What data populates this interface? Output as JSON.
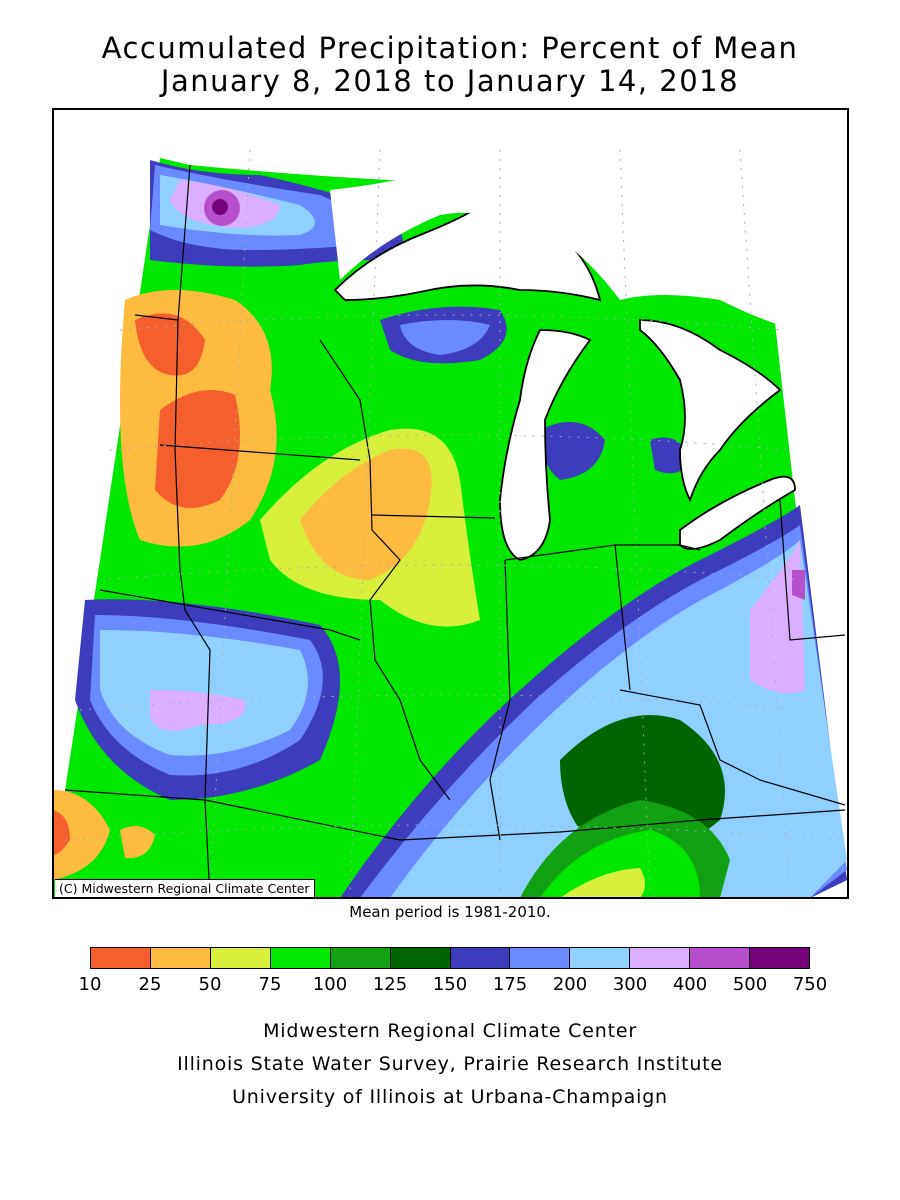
{
  "title": {
    "line1": "Accumulated Precipitation: Percent of Mean",
    "line2": "January 8, 2018 to January 14, 2018"
  },
  "map": {
    "copyright": "(C) Midwestern Regional Climate Center",
    "mean_period": "Mean period is 1981-2010."
  },
  "legend": {
    "breaks": [
      "10",
      "25",
      "50",
      "75",
      "100",
      "125",
      "150",
      "175",
      "200",
      "300",
      "400",
      "500",
      "750"
    ],
    "colors": [
      "#f55f2d",
      "#fdbb3f",
      "#d8f03b",
      "#00e800",
      "#12a112",
      "#006400",
      "#3c3cbd",
      "#6a8bff",
      "#8fd0ff",
      "#dcaeff",
      "#b74fcd",
      "#74007a"
    ]
  },
  "credits": {
    "line1": "Midwestern Regional Climate Center",
    "line2": "Illinois State Water Survey, Prairie Research Institute",
    "line3": "University of Illinois at Urbana-Champaign"
  }
}
